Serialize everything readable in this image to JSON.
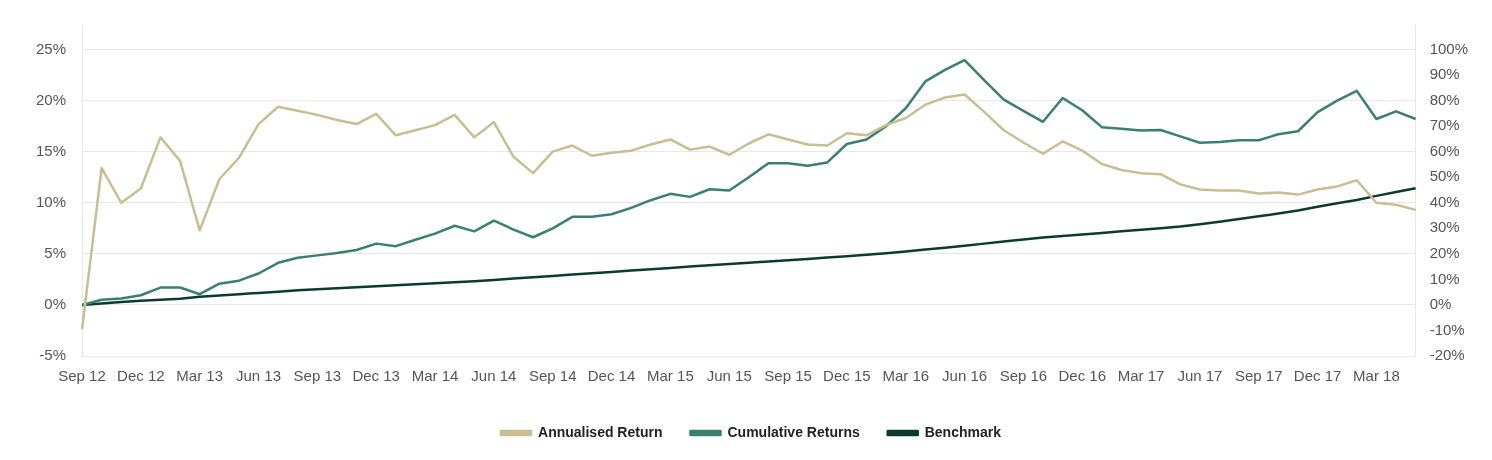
{
  "chart_data": {
    "type": "line",
    "categories": [
      "Sep 12",
      null,
      null,
      "Dec 12",
      null,
      null,
      "Mar 13",
      null,
      null,
      "Jun 13",
      null,
      null,
      "Sep 13",
      null,
      null,
      "Dec 13",
      null,
      null,
      "Mar 14",
      null,
      null,
      "Jun 14",
      null,
      null,
      "Sep 14",
      null,
      null,
      "Dec 14",
      null,
      null,
      "Mar 15",
      null,
      null,
      "Jun 15",
      null,
      null,
      "Sep 15",
      null,
      null,
      "Dec 15",
      null,
      null,
      "Mar 16",
      null,
      null,
      "Jun 16",
      null,
      null,
      "Sep 16",
      null,
      null,
      "Dec 16",
      null,
      null,
      "Mar 17",
      null,
      null,
      "Jun 17",
      null,
      null,
      "Sep 17",
      null,
      null,
      "Dec 17",
      null,
      null,
      "Mar 18",
      null,
      null
    ],
    "series": [
      {
        "name": "Annualised Return",
        "color": "#c8bd93",
        "values": [
          -2.4,
          13.4,
          10.0,
          11.4,
          16.4,
          14.1,
          7.3,
          12.3,
          14.4,
          17.7,
          19.4,
          19.0,
          18.6,
          18.1,
          17.7,
          18.7,
          16.6,
          17.1,
          17.6,
          18.6,
          16.4,
          17.9,
          14.5,
          12.9,
          15.0,
          15.6,
          14.6,
          14.9,
          15.1,
          15.7,
          16.2,
          15.2,
          15.5,
          14.7,
          15.8,
          16.7,
          16.2,
          15.7,
          15.6,
          16.8,
          16.6,
          17.6,
          18.3,
          19.6,
          20.3,
          20.6,
          18.9,
          17.1,
          15.9,
          14.8,
          16.0,
          15.1,
          13.8,
          13.2,
          12.9,
          12.8,
          11.8,
          11.3,
          11.2,
          11.2,
          10.9,
          11.0,
          10.8,
          11.3,
          11.6,
          12.2,
          10.0,
          9.8,
          9.3
        ]
      },
      {
        "name": "Cumulative Returns",
        "color": "#3b7f6e",
        "axis": "y2",
        "values": [
          0,
          2.0,
          2.5,
          3.8,
          6.8,
          6.8,
          4.2,
          8.3,
          9.5,
          12.3,
          16.5,
          18.5,
          19.4,
          20.3,
          21.5,
          24.0,
          23.0,
          25.5,
          27.9,
          31.0,
          28.8,
          33.0,
          29.5,
          26.5,
          30.0,
          34.5,
          34.5,
          35.5,
          38.0,
          41.0,
          43.5,
          42.3,
          45.3,
          44.8,
          50.0,
          55.5,
          55.5,
          54.5,
          55.8,
          63.0,
          64.8,
          70.0,
          77.0,
          87.5,
          92.0,
          95.8,
          88.0,
          80.4,
          76.0,
          71.7,
          81.0,
          76.2,
          69.6,
          69.0,
          68.3,
          68.5,
          66.0,
          63.5,
          63.8,
          64.5,
          64.5,
          66.8,
          68.0,
          75.5,
          80.0,
          83.8,
          72.8,
          75.8,
          72.8
        ]
      },
      {
        "name": "Benchmark",
        "color": "#0c3b2e",
        "axis": "y2",
        "values": [
          0,
          0.6,
          1.1,
          1.6,
          2.0,
          2.4,
          3.2,
          3.7,
          4.2,
          4.7,
          5.2,
          5.7,
          6.1,
          6.5,
          6.9,
          7.3,
          7.7,
          8.1,
          8.5,
          8.9,
          9.3,
          9.8,
          10.3,
          10.8,
          11.3,
          11.9,
          12.4,
          12.9,
          13.5,
          14.0,
          14.5,
          15.0,
          15.5,
          16.0,
          16.5,
          17.0,
          17.5,
          18.0,
          18.6,
          19.1,
          19.6,
          20.2,
          20.9,
          21.7,
          22.4,
          23.2,
          24.0,
          24.8,
          25.6,
          26.4,
          27.0,
          27.6,
          28.2,
          28.8,
          29.4,
          30.0,
          30.7,
          31.6,
          32.6,
          33.6,
          34.7,
          35.8,
          37.0,
          38.4,
          39.8,
          41.1,
          42.7,
          44.2,
          45.7
        ]
      }
    ],
    "ylim": [
      -5,
      27.4
    ],
    "yticks": [
      {
        "value": -5,
        "label": "-5%"
      },
      {
        "value": 0,
        "label": "0%"
      },
      {
        "value": 5,
        "label": "5%"
      },
      {
        "value": 10,
        "label": "10%"
      },
      {
        "value": 15,
        "label": "15%"
      },
      {
        "value": 20,
        "label": "20%"
      },
      {
        "value": 25,
        "label": "25%"
      }
    ],
    "y2lim": [
      -20,
      109.6
    ],
    "y2ticks": [
      {
        "value": -20,
        "label": "-20%"
      },
      {
        "value": -10,
        "label": "-10%"
      },
      {
        "value": 0,
        "label": "0%"
      },
      {
        "value": 10,
        "label": "10%"
      },
      {
        "value": 20,
        "label": "20%"
      },
      {
        "value": 30,
        "label": "30%"
      },
      {
        "value": 40,
        "label": "40%"
      },
      {
        "value": 50,
        "label": "50%"
      },
      {
        "value": 60,
        "label": "60%"
      },
      {
        "value": 70,
        "label": "70%"
      },
      {
        "value": 80,
        "label": "80%"
      },
      {
        "value": 90,
        "label": "90%"
      },
      {
        "value": 100,
        "label": "100%"
      }
    ],
    "grid": "y",
    "legend": "bottom",
    "marker": "none",
    "line_style": "solid"
  }
}
